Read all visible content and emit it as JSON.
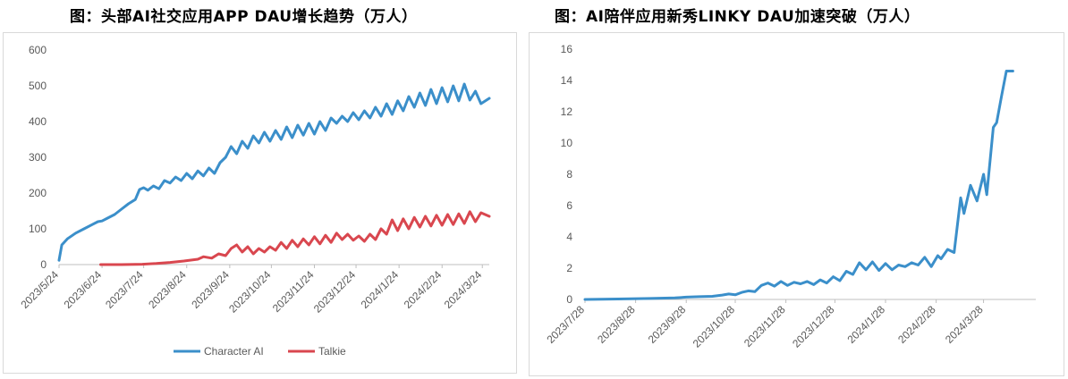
{
  "charts": {
    "left": {
      "title": "图：头部AI社交应用APP DAU增长趋势（万人）",
      "y_ticks": [
        "0",
        "100",
        "200",
        "300",
        "400",
        "500",
        "600"
      ],
      "x_ticks": [
        "2023/5/24",
        "2023/6/24",
        "2023/7/24",
        "2023/8/24",
        "2023/9/24",
        "2023/10/24",
        "2023/11/24",
        "2023/12/24",
        "2024/1/24",
        "2024/2/24",
        "2024/3/24"
      ],
      "legend": [
        "Character AI",
        "Talkie"
      ]
    },
    "right": {
      "title": "图：AI陪伴应用新秀LINKY DAU加速突破（万人）",
      "y_ticks": [
        "0",
        "2",
        "4",
        "6",
        "8",
        "10",
        "12",
        "14",
        "16"
      ],
      "x_ticks": [
        "2023/7/28",
        "2023/8/28",
        "2023/9/28",
        "2023/10/28",
        "2023/11/28",
        "2023/12/28",
        "2024/1/28",
        "2024/2/28",
        "2024/3/28"
      ]
    }
  },
  "colors": {
    "blue": "#3b8fca",
    "red": "#d9474f",
    "axis": "#bfbfbf",
    "tick_text": "#595959"
  },
  "chart_data": [
    {
      "type": "line",
      "title": "图：头部AI社交应用APP DAU增长趋势（万人）",
      "x_unit": "day offset from 2023/5/24",
      "ylim": [
        0,
        600
      ],
      "series": [
        {
          "name": "Character AI",
          "x": [
            0,
            2,
            6,
            12,
            18,
            24,
            28,
            31,
            35,
            40,
            45,
            50,
            55,
            58,
            61,
            64,
            68,
            72,
            76,
            80,
            84,
            88,
            92,
            96,
            100,
            104,
            108,
            112,
            116,
            120,
            124,
            128,
            132,
            136,
            140,
            144,
            148,
            152,
            156,
            160,
            164,
            168,
            172,
            176,
            180,
            184,
            188,
            192,
            196,
            200,
            204,
            208,
            212,
            216,
            220,
            224,
            228,
            232,
            236,
            240,
            244,
            248,
            252,
            256,
            260,
            264,
            268,
            272,
            276,
            280,
            284,
            288,
            292,
            296,
            300,
            304,
            310
          ],
          "values": [
            12,
            55,
            72,
            88,
            100,
            112,
            120,
            122,
            130,
            140,
            155,
            170,
            182,
            210,
            215,
            208,
            220,
            212,
            235,
            228,
            245,
            235,
            255,
            240,
            262,
            248,
            270,
            255,
            285,
            300,
            330,
            310,
            345,
            325,
            360,
            340,
            370,
            345,
            375,
            350,
            385,
            355,
            390,
            362,
            395,
            365,
            400,
            375,
            410,
            395,
            415,
            400,
            425,
            405,
            430,
            410,
            440,
            415,
            450,
            420,
            458,
            430,
            470,
            440,
            480,
            445,
            490,
            450,
            495,
            455,
            500,
            458,
            505,
            460,
            485,
            450,
            465
          ]
        },
        {
          "name": "Talkie",
          "x": [
            30,
            45,
            60,
            70,
            80,
            90,
            100,
            104,
            110,
            115,
            120,
            124,
            128,
            132,
            136,
            140,
            144,
            148,
            152,
            156,
            160,
            164,
            168,
            172,
            176,
            180,
            184,
            188,
            192,
            196,
            200,
            204,
            208,
            212,
            216,
            220,
            224,
            228,
            232,
            236,
            240,
            244,
            248,
            252,
            256,
            260,
            264,
            268,
            272,
            276,
            280,
            284,
            288,
            292,
            296,
            300,
            304,
            310
          ],
          "values": [
            0,
            0,
            1,
            3,
            6,
            10,
            15,
            22,
            18,
            30,
            25,
            45,
            55,
            35,
            50,
            30,
            45,
            35,
            50,
            40,
            62,
            45,
            68,
            50,
            72,
            55,
            78,
            58,
            82,
            62,
            88,
            70,
            85,
            68,
            80,
            65,
            85,
            70,
            100,
            85,
            125,
            95,
            128,
            100,
            132,
            105,
            135,
            108,
            138,
            110,
            140,
            112,
            142,
            115,
            148,
            120,
            145,
            135
          ]
        }
      ]
    },
    {
      "type": "line",
      "title": "图：AI陪伴应用新秀LINKY DAU加速突破（万人）",
      "x_unit": "day offset from 2023/7/28",
      "ylim": [
        0,
        16
      ],
      "series": [
        {
          "name": "LINKY",
          "x": [
            0,
            20,
            40,
            55,
            62,
            70,
            78,
            84,
            88,
            92,
            96,
            100,
            104,
            108,
            112,
            116,
            120,
            124,
            128,
            132,
            136,
            140,
            144,
            148,
            152,
            156,
            160,
            164,
            168,
            172,
            176,
            180,
            184,
            188,
            192,
            196,
            200,
            204,
            208,
            212,
            216,
            218,
            222,
            226,
            230,
            232,
            236,
            240,
            244,
            246,
            250,
            252,
            255,
            258,
            262
          ],
          "values": [
            0,
            0.03,
            0.06,
            0.1,
            0.15,
            0.18,
            0.2,
            0.28,
            0.35,
            0.3,
            0.45,
            0.55,
            0.5,
            0.9,
            1.05,
            0.85,
            1.15,
            0.9,
            1.1,
            1.0,
            1.15,
            0.95,
            1.25,
            1.05,
            1.45,
            1.2,
            1.8,
            1.6,
            2.35,
            1.9,
            2.4,
            1.85,
            2.3,
            1.9,
            2.2,
            2.1,
            2.35,
            2.2,
            2.7,
            2.1,
            2.8,
            2.6,
            3.2,
            3.0,
            6.5,
            5.5,
            7.3,
            6.3,
            8.0,
            6.7,
            11.0,
            11.3,
            13.0,
            14.6,
            14.6
          ]
        }
      ]
    }
  ]
}
